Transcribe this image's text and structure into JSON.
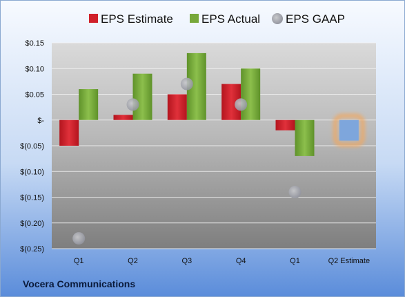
{
  "company": "Vocera Communications",
  "colors": {
    "estimate": "#d0202a",
    "actual": "#77a83a",
    "gaap": "#a8aab0",
    "q2_estimate": "#7ea6dc",
    "q2_estimate_glow": "#f0a860",
    "background_top": "#f4f8fd",
    "background_bottom": "#5e90dc"
  },
  "chart_data": {
    "type": "bar",
    "categories": [
      "Q1",
      "Q2",
      "Q3",
      "Q4",
      "Q1",
      "Q2 Estimate"
    ],
    "series": [
      {
        "name": "EPS Estimate",
        "values": [
          -0.05,
          0.01,
          0.05,
          0.07,
          -0.02,
          null
        ]
      },
      {
        "name": "EPS Actual",
        "values": [
          0.06,
          0.09,
          0.13,
          0.1,
          -0.07,
          null
        ]
      },
      {
        "name": "EPS GAAP",
        "values": [
          -0.23,
          0.03,
          0.07,
          0.03,
          -0.14,
          null
        ]
      }
    ],
    "q2_estimate_value": -0.04,
    "y_ticks": [
      {
        "value": 0.15,
        "label": "$0.15"
      },
      {
        "value": 0.1,
        "label": "$0.10"
      },
      {
        "value": 0.05,
        "label": "$0.05"
      },
      {
        "value": 0.0,
        "label": "$-"
      },
      {
        "value": -0.05,
        "label": "$(0.05)"
      },
      {
        "value": -0.1,
        "label": "$(0.10)"
      },
      {
        "value": -0.15,
        "label": "$(0.15)"
      },
      {
        "value": -0.2,
        "label": "$(0.20)"
      },
      {
        "value": -0.25,
        "label": "$(0.25)"
      }
    ],
    "ylim": [
      -0.25,
      0.15
    ],
    "grid": true,
    "legend_position": "top"
  }
}
